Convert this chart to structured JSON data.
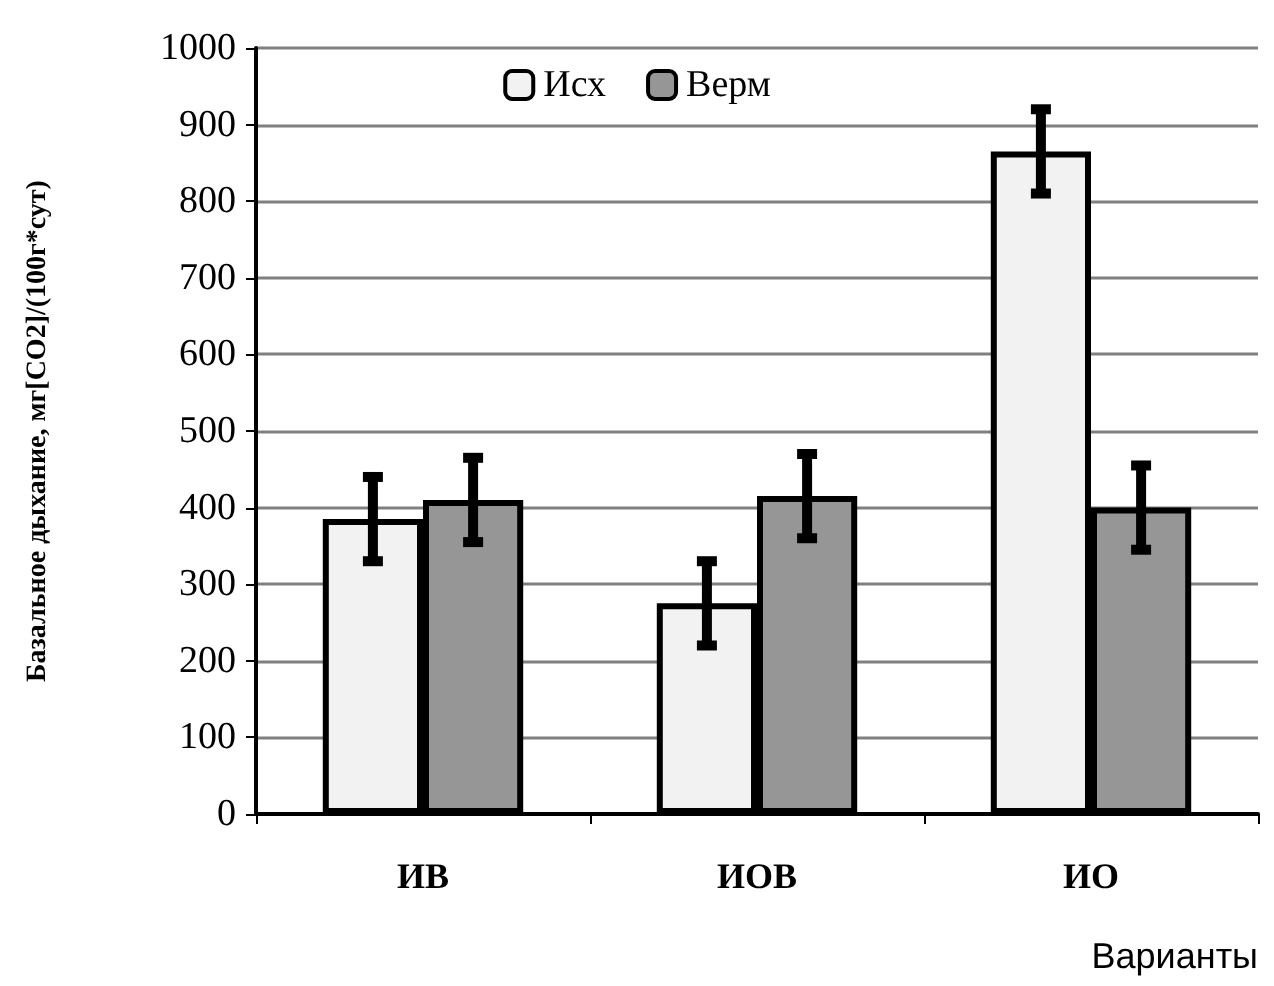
{
  "chart_data": {
    "type": "bar",
    "xlabel": "Варианты",
    "ylabel": "Базальное дыхание, мг[CO2]/(100г*сут)",
    "categories": [
      "ИВ",
      "ИОВ",
      "ИО"
    ],
    "series": [
      {
        "name": "Исх",
        "color": "#f2f2f2",
        "values": [
          385,
          275,
          865
        ],
        "errors": [
          55,
          55,
          55
        ]
      },
      {
        "name": "Верм",
        "color": "#969696",
        "values": [
          410,
          415,
          400
        ],
        "errors": [
          55,
          55,
          55
        ]
      }
    ],
    "ylim": [
      0,
      1000
    ],
    "yticks": [
      0,
      100,
      200,
      300,
      400,
      500,
      600,
      700,
      800,
      900,
      1000
    ],
    "grid": "y",
    "legend": "top"
  }
}
